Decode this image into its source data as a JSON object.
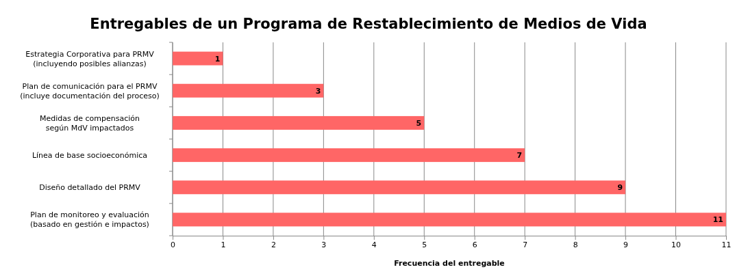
{
  "chart_data": {
    "type": "bar",
    "orientation": "horizontal",
    "title": "Entregables de un Programa de Restablecimiento de Medios de Vida",
    "xlabel": "Frecuencia del entregable",
    "categories": [
      "Estrategia Corporativa para PRMV\n(incluyendo posibles alianzas)",
      "Plan de comunicación para el PRMV\n(incluye documentación del proceso)",
      "Medidas de compensación\nsegún MdV impactados",
      "Línea de base socioeconómica",
      "Diseño detallado del PRMV",
      "Plan de monitoreo y evaluación\n(basado en gestión e impactos)"
    ],
    "values": [
      1,
      3,
      5,
      7,
      9,
      11
    ],
    "color": "#ff6666",
    "xlim": [
      0,
      11
    ],
    "xticks": [
      0,
      1,
      2,
      3,
      4,
      5,
      6,
      7,
      8,
      9,
      10,
      11
    ],
    "grid": "x",
    "data_labels": true
  }
}
